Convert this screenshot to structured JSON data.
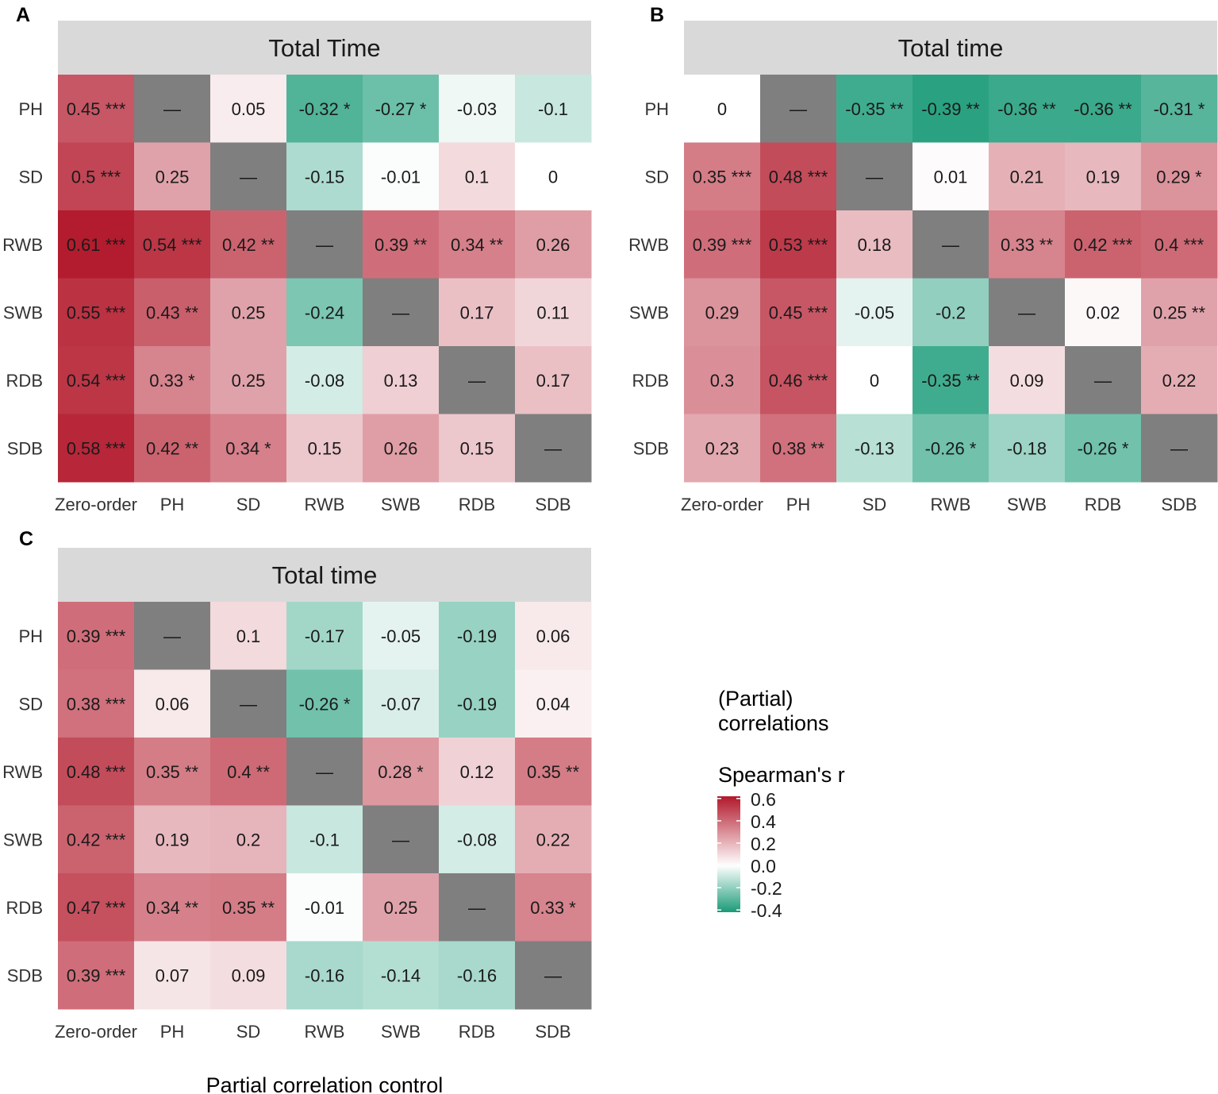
{
  "figure": {
    "x_axis_label": "Partial correlation control",
    "colors": {
      "neg": "#1a9b78",
      "mid": "#ffffff",
      "pos": "#b2182b",
      "diag": "#7f7f7f",
      "strip": "#d9d9d9"
    }
  },
  "legend": {
    "title_lines": [
      "(Partial)",
      "correlations"
    ],
    "subtitle": "Spearman's r",
    "ticks": [
      "0.6",
      "0.4",
      "0.2",
      "0.0",
      "-0.2",
      "-0.4"
    ],
    "tick_values": [
      0.6,
      0.4,
      0.2,
      0.0,
      -0.2,
      -0.4
    ],
    "range": [
      -0.42,
      0.62
    ]
  },
  "chart_data": [
    {
      "type": "heatmap",
      "panel": "A",
      "title": "Total Time",
      "columns": [
        "Zero-order",
        "PH",
        "SD",
        "RWB",
        "SWB",
        "RDB",
        "SDB"
      ],
      "rows": [
        "PH",
        "SD",
        "RWB",
        "SWB",
        "RDB",
        "SDB"
      ],
      "diagonal_label": "—",
      "cells": [
        [
          {
            "v": 0.45,
            "s": "***"
          },
          {
            "v": null
          },
          {
            "v": 0.05,
            "s": ""
          },
          {
            "v": -0.32,
            "s": "*"
          },
          {
            "v": -0.27,
            "s": "*"
          },
          {
            "v": -0.03,
            "s": ""
          },
          {
            "v": -0.1,
            "s": ""
          }
        ],
        [
          {
            "v": 0.5,
            "s": "***"
          },
          {
            "v": 0.25,
            "s": ""
          },
          {
            "v": null
          },
          {
            "v": -0.15,
            "s": ""
          },
          {
            "v": -0.01,
            "s": ""
          },
          {
            "v": 0.1,
            "s": ""
          },
          {
            "v": 0,
            "s": ""
          }
        ],
        [
          {
            "v": 0.61,
            "s": "***"
          },
          {
            "v": 0.54,
            "s": "***"
          },
          {
            "v": 0.42,
            "s": "**"
          },
          {
            "v": null
          },
          {
            "v": 0.39,
            "s": "**"
          },
          {
            "v": 0.34,
            "s": "**"
          },
          {
            "v": 0.26,
            "s": ""
          }
        ],
        [
          {
            "v": 0.55,
            "s": "***"
          },
          {
            "v": 0.43,
            "s": "**"
          },
          {
            "v": 0.25,
            "s": ""
          },
          {
            "v": -0.24,
            "s": ""
          },
          {
            "v": null
          },
          {
            "v": 0.17,
            "s": ""
          },
          {
            "v": 0.11,
            "s": ""
          }
        ],
        [
          {
            "v": 0.54,
            "s": "***"
          },
          {
            "v": 0.33,
            "s": "*"
          },
          {
            "v": 0.25,
            "s": ""
          },
          {
            "v": -0.08,
            "s": ""
          },
          {
            "v": 0.13,
            "s": ""
          },
          {
            "v": null
          },
          {
            "v": 0.17,
            "s": ""
          }
        ],
        [
          {
            "v": 0.58,
            "s": "***"
          },
          {
            "v": 0.42,
            "s": "**"
          },
          {
            "v": 0.34,
            "s": "*"
          },
          {
            "v": 0.15,
            "s": ""
          },
          {
            "v": 0.26,
            "s": ""
          },
          {
            "v": 0.15,
            "s": ""
          },
          {
            "v": null
          }
        ]
      ]
    },
    {
      "type": "heatmap",
      "panel": "B",
      "title": "Total time",
      "columns": [
        "Zero-order",
        "PH",
        "SD",
        "RWB",
        "SWB",
        "RDB",
        "SDB"
      ],
      "rows": [
        "PH",
        "SD",
        "RWB",
        "SWB",
        "RDB",
        "SDB"
      ],
      "diagonal_label": "—",
      "cells": [
        [
          {
            "v": 0,
            "s": ""
          },
          {
            "v": null
          },
          {
            "v": -0.35,
            "s": "**"
          },
          {
            "v": -0.39,
            "s": "**"
          },
          {
            "v": -0.36,
            "s": "**"
          },
          {
            "v": -0.36,
            "s": "**"
          },
          {
            "v": -0.31,
            "s": "*"
          }
        ],
        [
          {
            "v": 0.35,
            "s": "***"
          },
          {
            "v": 0.48,
            "s": "***"
          },
          {
            "v": null
          },
          {
            "v": 0.01,
            "s": ""
          },
          {
            "v": 0.21,
            "s": ""
          },
          {
            "v": 0.19,
            "s": ""
          },
          {
            "v": 0.29,
            "s": "*"
          }
        ],
        [
          {
            "v": 0.39,
            "s": "***"
          },
          {
            "v": 0.53,
            "s": "***"
          },
          {
            "v": 0.18,
            "s": ""
          },
          {
            "v": null
          },
          {
            "v": 0.33,
            "s": "**"
          },
          {
            "v": 0.42,
            "s": "***"
          },
          {
            "v": 0.4,
            "s": "***"
          }
        ],
        [
          {
            "v": 0.29,
            "s": ""
          },
          {
            "v": 0.45,
            "s": "***"
          },
          {
            "v": -0.05,
            "s": ""
          },
          {
            "v": -0.2,
            "s": ""
          },
          {
            "v": null
          },
          {
            "v": 0.02,
            "s": ""
          },
          {
            "v": 0.25,
            "s": "**"
          }
        ],
        [
          {
            "v": 0.3,
            "s": ""
          },
          {
            "v": 0.46,
            "s": "***"
          },
          {
            "v": 0,
            "s": ""
          },
          {
            "v": -0.35,
            "s": "**"
          },
          {
            "v": 0.09,
            "s": ""
          },
          {
            "v": null
          },
          {
            "v": 0.22,
            "s": ""
          }
        ],
        [
          {
            "v": 0.23,
            "s": ""
          },
          {
            "v": 0.38,
            "s": "**"
          },
          {
            "v": -0.13,
            "s": ""
          },
          {
            "v": -0.26,
            "s": "*"
          },
          {
            "v": -0.18,
            "s": ""
          },
          {
            "v": -0.26,
            "s": "*"
          },
          {
            "v": null
          }
        ]
      ]
    },
    {
      "type": "heatmap",
      "panel": "C",
      "title": "Total time",
      "columns": [
        "Zero-order",
        "PH",
        "SD",
        "RWB",
        "SWB",
        "RDB",
        "SDB"
      ],
      "rows": [
        "PH",
        "SD",
        "RWB",
        "SWB",
        "RDB",
        "SDB"
      ],
      "diagonal_label": "—",
      "cells": [
        [
          {
            "v": 0.39,
            "s": "***"
          },
          {
            "v": null
          },
          {
            "v": 0.1,
            "s": ""
          },
          {
            "v": -0.17,
            "s": ""
          },
          {
            "v": -0.05,
            "s": ""
          },
          {
            "v": -0.19,
            "s": ""
          },
          {
            "v": 0.06,
            "s": ""
          }
        ],
        [
          {
            "v": 0.38,
            "s": "***"
          },
          {
            "v": 0.06,
            "s": ""
          },
          {
            "v": null
          },
          {
            "v": -0.26,
            "s": "*"
          },
          {
            "v": -0.07,
            "s": ""
          },
          {
            "v": -0.19,
            "s": ""
          },
          {
            "v": 0.04,
            "s": ""
          }
        ],
        [
          {
            "v": 0.48,
            "s": "***"
          },
          {
            "v": 0.35,
            "s": "**"
          },
          {
            "v": 0.4,
            "s": "**"
          },
          {
            "v": null
          },
          {
            "v": 0.28,
            "s": "*"
          },
          {
            "v": 0.12,
            "s": ""
          },
          {
            "v": 0.35,
            "s": "**"
          }
        ],
        [
          {
            "v": 0.42,
            "s": "***"
          },
          {
            "v": 0.19,
            "s": ""
          },
          {
            "v": 0.2,
            "s": ""
          },
          {
            "v": -0.1,
            "s": ""
          },
          {
            "v": null
          },
          {
            "v": -0.08,
            "s": ""
          },
          {
            "v": 0.22,
            "s": ""
          }
        ],
        [
          {
            "v": 0.47,
            "s": "***"
          },
          {
            "v": 0.34,
            "s": "**"
          },
          {
            "v": 0.35,
            "s": "**"
          },
          {
            "v": -0.01,
            "s": ""
          },
          {
            "v": 0.25,
            "s": ""
          },
          {
            "v": null
          },
          {
            "v": 0.33,
            "s": "*"
          }
        ],
        [
          {
            "v": 0.39,
            "s": "***"
          },
          {
            "v": 0.07,
            "s": ""
          },
          {
            "v": 0.09,
            "s": ""
          },
          {
            "v": -0.16,
            "s": ""
          },
          {
            "v": -0.14,
            "s": ""
          },
          {
            "v": -0.16,
            "s": ""
          },
          {
            "v": null
          }
        ]
      ]
    }
  ]
}
